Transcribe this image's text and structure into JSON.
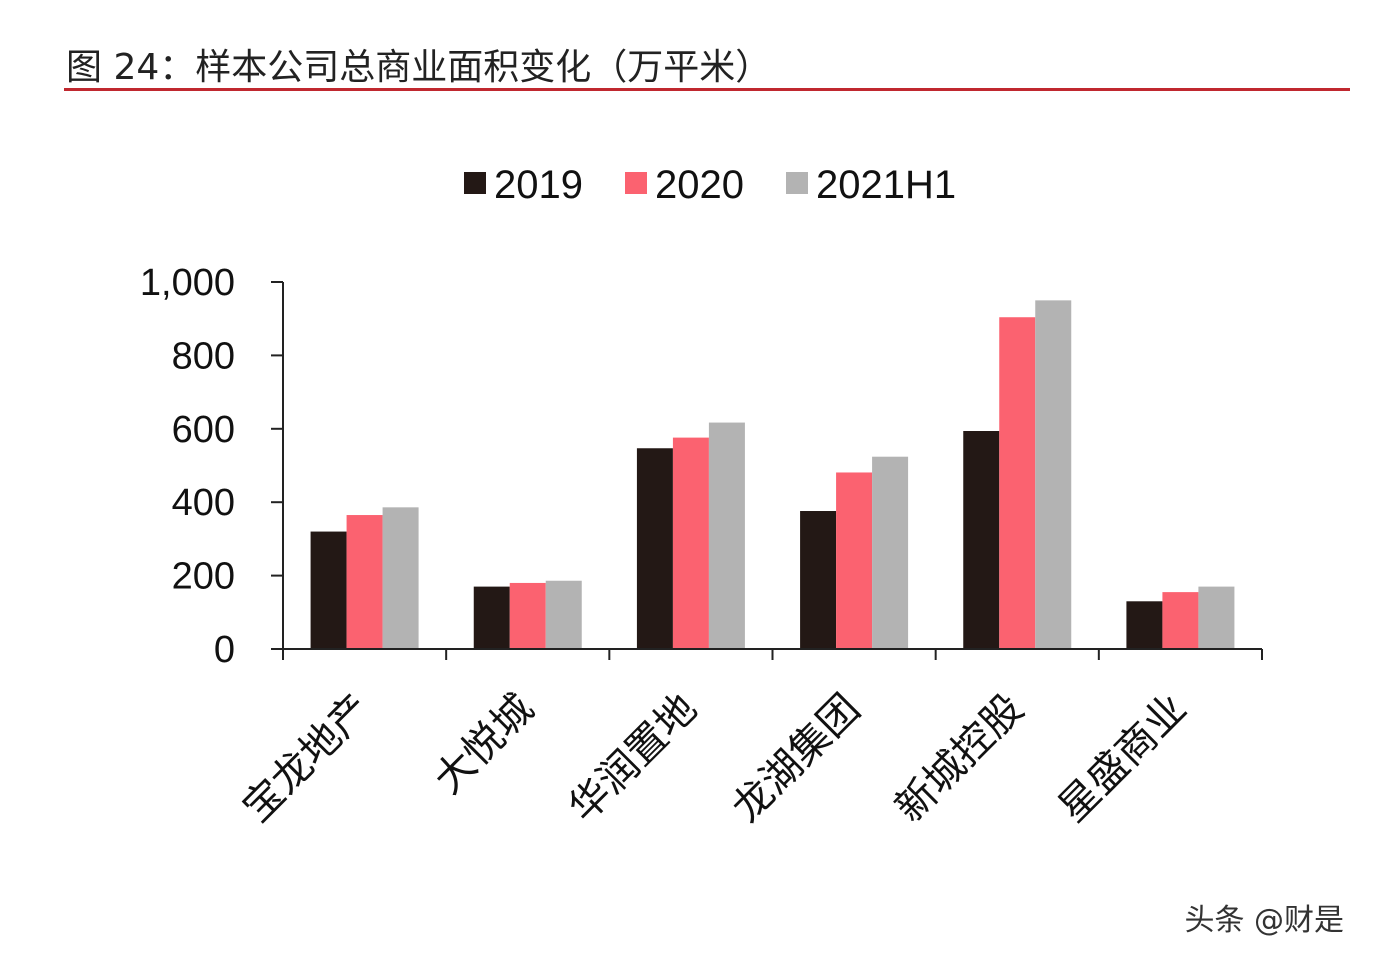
{
  "figure": {
    "title": "图 24：样本公司总商业面积变化（万平米）",
    "watermark": "头条 @财是"
  },
  "chart_data": {
    "type": "bar",
    "title": "图 24：样本公司总商业面积变化（万平米）",
    "xlabel": "",
    "ylabel": "",
    "categories": [
      "宝龙地产",
      "大悦城",
      "华润置地",
      "龙湖集团",
      "新城控股",
      "星盛商业"
    ],
    "series": [
      {
        "name": "2019",
        "color": "#231815",
        "values": [
          320,
          170,
          547,
          376,
          594,
          130
        ]
      },
      {
        "name": "2020",
        "color": "#fb6270",
        "values": [
          365,
          180,
          576,
          481,
          904,
          155
        ]
      },
      {
        "name": "2021H1",
        "color": "#b3b3b3",
        "values": [
          386,
          186,
          617,
          524,
          950,
          170
        ]
      }
    ],
    "ylim": [
      0,
      1000
    ],
    "yticks": [
      0,
      200,
      400,
      600,
      800,
      1000
    ],
    "ytick_labels": [
      "0",
      "200",
      "400",
      "600",
      "800",
      "1,000"
    ],
    "grid": false,
    "legend": "top-center"
  }
}
